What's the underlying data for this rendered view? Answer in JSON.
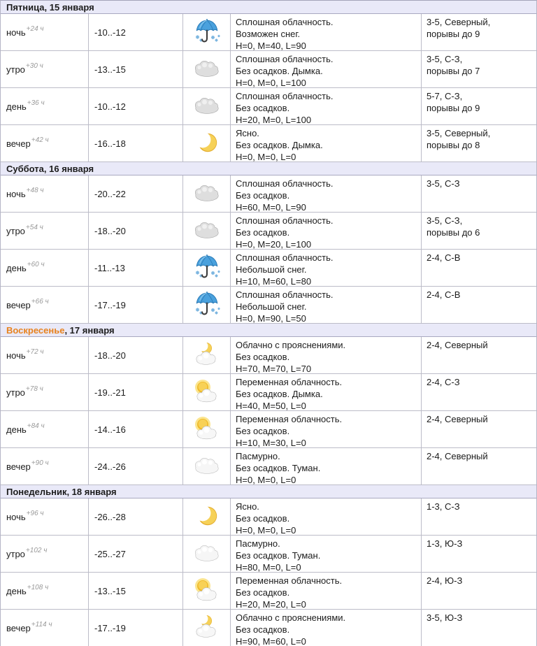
{
  "colors": {
    "day_name_accent": "#e8821e",
    "day_header_bg": "#e9e9f8",
    "table_border": "#bcbcc8",
    "umbrella_blue": "#4aa1dd",
    "moon_gold": "#f6d158",
    "sun_gold": "#efb928",
    "cloud_gray": "#dedede"
  },
  "days": [
    {
      "name": "Пятница",
      "date_suffix": ", 15 января",
      "rows": [
        {
          "period": "ночь",
          "offset": "+24 ч",
          "temp": "-10..-12",
          "icon": "umbrella-snow-icon",
          "description": [
            "Сплошная облачность.",
            "Возможен снег.",
            "H=0, M=40, L=90"
          ],
          "wind": [
            "3-5, Северный,",
            "порывы до 9"
          ]
        },
        {
          "period": "утро",
          "offset": "+30 ч",
          "temp": "-13..-15",
          "icon": "cloud-gray-icon",
          "description": [
            "Сплошная облачность.",
            "Без осадков. Дымка.",
            "H=0, M=0, L=100"
          ],
          "wind": [
            "3-5, С-З,",
            "порывы до 7"
          ]
        },
        {
          "period": "день",
          "offset": "+36 ч",
          "temp": "-10..-12",
          "icon": "cloud-gray-icon",
          "description": [
            "Сплошная облачность.",
            "Без осадков.",
            "H=20, M=0, L=100"
          ],
          "wind": [
            "5-7, С-З,",
            "порывы до 9"
          ]
        },
        {
          "period": "вечер",
          "offset": "+42 ч",
          "temp": "-16..-18",
          "icon": "moon-icon",
          "description": [
            "Ясно.",
            "Без осадков. Дымка.",
            "H=0, M=0, L=0"
          ],
          "wind": [
            "3-5, Северный,",
            "порывы до 8"
          ]
        }
      ]
    },
    {
      "name": "Суббота",
      "date_suffix": ", 16 января",
      "rows": [
        {
          "period": "ночь",
          "offset": "+48 ч",
          "temp": "-20..-22",
          "icon": "cloud-gray-icon",
          "description": [
            "Сплошная облачность.",
            "Без осадков.",
            "H=60, M=0, L=90"
          ],
          "wind": [
            "3-5, С-З"
          ]
        },
        {
          "period": "утро",
          "offset": "+54 ч",
          "temp": "-18..-20",
          "icon": "cloud-gray-icon",
          "description": [
            "Сплошная облачность.",
            "Без осадков.",
            "H=0, M=20, L=100"
          ],
          "wind": [
            "3-5, С-З,",
            "порывы до 6"
          ]
        },
        {
          "period": "день",
          "offset": "+60 ч",
          "temp": "-11..-13",
          "icon": "umbrella-snow-icon",
          "description": [
            "Сплошная облачность.",
            "Небольшой снег.",
            "H=10, M=60, L=80"
          ],
          "wind": [
            "2-4, С-В"
          ]
        },
        {
          "period": "вечер",
          "offset": "+66 ч",
          "temp": "-17..-19",
          "icon": "umbrella-snow-icon",
          "description": [
            "Сплошная облачность.",
            "Небольшой снег.",
            "H=0, M=90, L=50"
          ],
          "wind": [
            "2-4, С-В"
          ]
        }
      ]
    },
    {
      "name": "Воскресенье",
      "name_color": "#e8821e",
      "date_suffix": ", 17 января",
      "rows": [
        {
          "period": "ночь",
          "offset": "+72 ч",
          "temp": "-18..-20",
          "icon": "moon-cloud-icon",
          "description": [
            "Облачно с прояснениями.",
            "Без осадков.",
            "H=70, M=70, L=70"
          ],
          "wind": [
            "2-4, Северный"
          ]
        },
        {
          "period": "утро",
          "offset": "+78 ч",
          "temp": "-19..-21",
          "icon": "sun-cloud-icon",
          "description": [
            "Переменная облачность.",
            "Без осадков. Дымка.",
            "H=40, M=50, L=0"
          ],
          "wind": [
            "2-4, С-З"
          ]
        },
        {
          "period": "день",
          "offset": "+84 ч",
          "temp": "-14..-16",
          "icon": "sun-cloud-icon",
          "description": [
            "Переменная облачность.",
            "Без осадков.",
            "H=10, M=30, L=0"
          ],
          "wind": [
            "2-4, Северный"
          ]
        },
        {
          "period": "вечер",
          "offset": "+90 ч",
          "temp": "-24..-26",
          "icon": "cloud-white-icon",
          "description": [
            "Пасмурно.",
            "Без осадков. Туман.",
            "H=0, M=0, L=0"
          ],
          "wind": [
            "2-4, Северный"
          ]
        }
      ]
    },
    {
      "name": "Понедельник",
      "date_suffix": ", 18 января",
      "rows": [
        {
          "period": "ночь",
          "offset": "+96 ч",
          "temp": "-26..-28",
          "icon": "moon-icon",
          "description": [
            "Ясно.",
            "Без осадков.",
            "H=0, M=0, L=0"
          ],
          "wind": [
            "1-3, С-З"
          ]
        },
        {
          "period": "утро",
          "offset": "+102 ч",
          "temp": "-25..-27",
          "icon": "cloud-white-icon",
          "description": [
            "Пасмурно.",
            "Без осадков. Туман.",
            "H=80, M=0, L=0"
          ],
          "wind": [
            "1-3, Ю-З"
          ]
        },
        {
          "period": "день",
          "offset": "+108 ч",
          "temp": "-13..-15",
          "icon": "sun-cloud-icon",
          "description": [
            "Переменная облачность.",
            "Без осадков.",
            "H=20, M=20, L=0"
          ],
          "wind": [
            "2-4, Ю-З"
          ]
        },
        {
          "period": "вечер",
          "offset": "+114 ч",
          "temp": "-17..-19",
          "icon": "moon-cloud-icon",
          "description": [
            "Облачно с прояснениями.",
            "Без осадков.",
            "H=90, M=60, L=0"
          ],
          "wind": [
            "3-5, Ю-З"
          ]
        }
      ]
    }
  ]
}
